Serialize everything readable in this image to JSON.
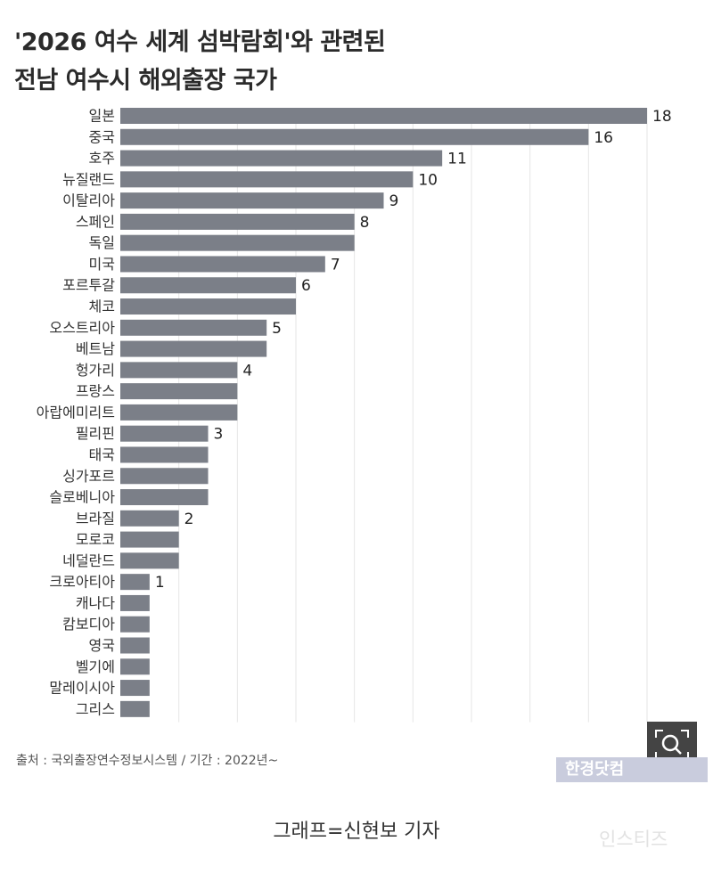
{
  "title": {
    "line1": "'2026 여수 세계 섬박람회'와 관련된",
    "line2": "전남 여수시 해외출장 국가"
  },
  "chart_data": {
    "type": "bar",
    "orientation": "horizontal",
    "categories": [
      "일본",
      "중국",
      "호주",
      "뉴질랜드",
      "이탈리아",
      "스페인",
      "독일",
      "미국",
      "포르투갈",
      "체코",
      "오스트리아",
      "베트남",
      "헝가리",
      "프랑스",
      "아랍에미리트",
      "필리핀",
      "태국",
      "싱가포르",
      "슬로베니아",
      "브라질",
      "모로코",
      "네덜란드",
      "크로아티아",
      "캐나다",
      "캄보디아",
      "영국",
      "벨기에",
      "말레이시아",
      "그리스"
    ],
    "values": [
      18,
      16,
      11,
      10,
      9,
      8,
      8,
      7,
      6,
      6,
      5,
      5,
      4,
      4,
      4,
      3,
      3,
      3,
      3,
      2,
      2,
      2,
      1,
      1,
      1,
      1,
      1,
      1,
      1
    ],
    "labels": [
      "18",
      "16",
      "11",
      "10",
      "9",
      "8",
      "",
      "7",
      "6",
      "",
      "5",
      "",
      "4",
      "",
      "",
      "3",
      "",
      "",
      "",
      "2",
      "",
      "",
      "1",
      "",
      "",
      "",
      "",
      "",
      ""
    ],
    "xlim": [
      0,
      18
    ],
    "grid": true,
    "bar_color": "#7b7f88"
  },
  "source": "출처 : 국외출장연수정보시스템 / 기간 : 2022년~",
  "brand": "한경닷컴",
  "caption": "그래프=신현보 기자",
  "watermark": "인스티즈",
  "icons": {
    "zoom": "zoom-in-icon"
  }
}
